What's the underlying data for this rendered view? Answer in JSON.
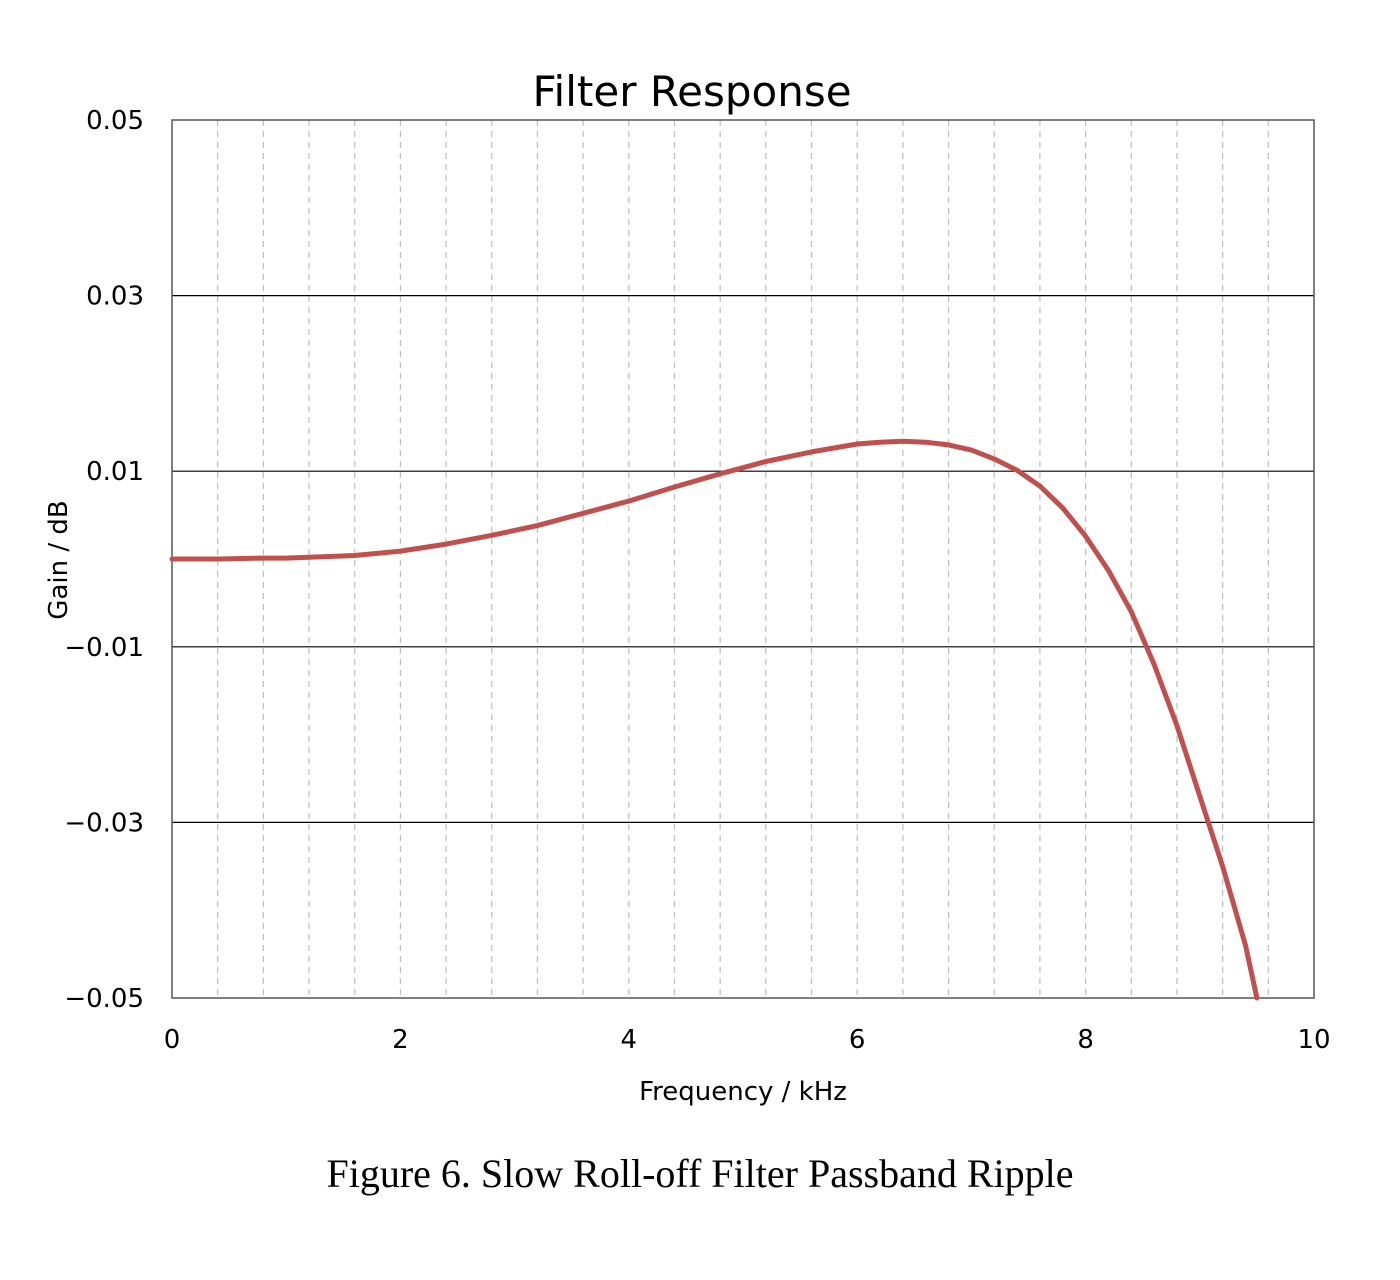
{
  "chart_data": {
    "type": "line",
    "title": "Filter Response",
    "xlabel": "Frequency / kHz",
    "ylabel": "Gain / dB",
    "xlim": [
      0,
      10
    ],
    "ylim": [
      -0.05,
      0.05
    ],
    "xticks": [
      "0",
      "2",
      "4",
      "6",
      "8",
      "10"
    ],
    "yticks": [
      "0.05",
      "0.03",
      "0.01",
      "−0.01",
      "−0.03",
      "−0.05"
    ],
    "grid": {
      "horizontal": "solid",
      "vertical": "dashed",
      "vertical_step": 0.4
    },
    "line_color": "#c0504d",
    "series": [
      {
        "x": [
          0,
          0.4,
          0.8,
          1.0,
          1.2,
          1.6,
          2.0,
          2.4,
          2.8,
          3.2,
          3.6,
          4.0,
          4.4,
          4.8,
          5.0,
          5.2,
          5.6,
          6.0,
          6.2,
          6.4,
          6.6,
          6.8,
          7.0,
          7.2,
          7.4,
          7.6,
          7.8,
          8.0,
          8.2,
          8.4,
          8.6,
          8.8,
          9.0,
          9.2,
          9.4,
          9.5
        ],
        "y": [
          0,
          0,
          0.0001,
          0.0001,
          0.0002,
          0.0004,
          0.0009,
          0.0017,
          0.0027,
          0.0038,
          0.0052,
          0.0066,
          0.0082,
          0.0097,
          0.0104,
          0.0111,
          0.0122,
          0.0131,
          0.0133,
          0.0134,
          0.0133,
          0.013,
          0.0124,
          0.0114,
          0.0101,
          0.0083,
          0.0058,
          0.0026,
          -0.0013,
          -0.006,
          -0.012,
          -0.019,
          -0.027,
          -0.035,
          -0.044,
          -0.05
        ]
      }
    ]
  },
  "caption": "Figure 6. Slow Roll-off Filter Passband Ripple"
}
